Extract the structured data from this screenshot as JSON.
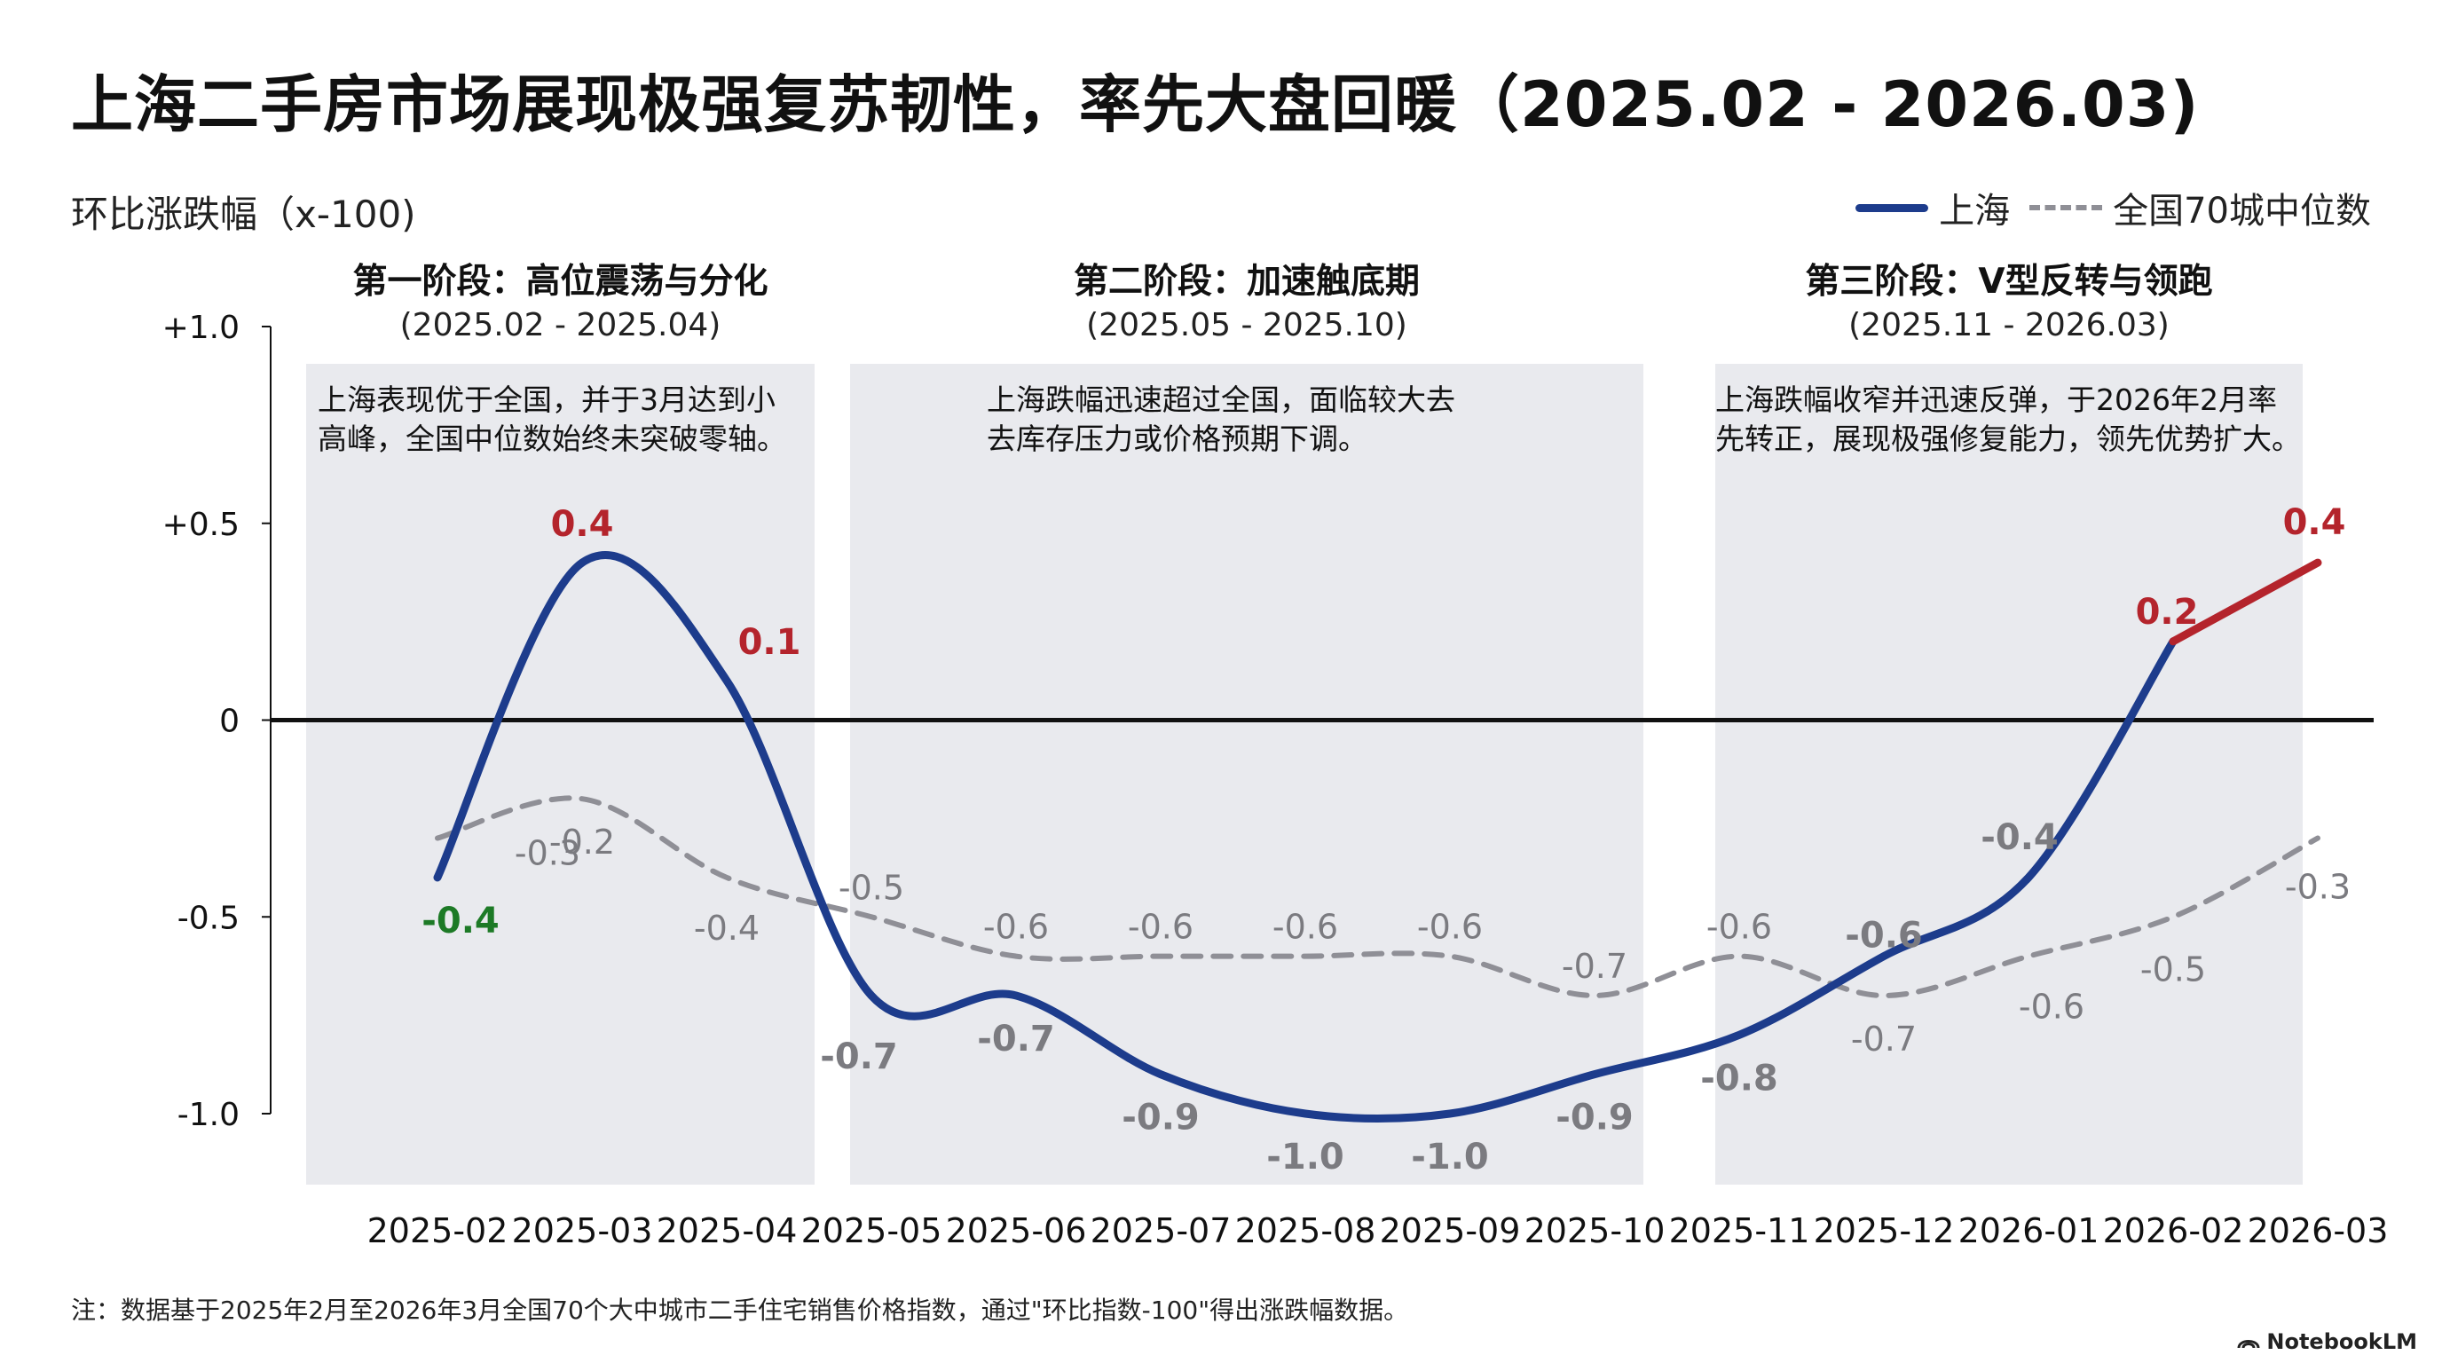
{
  "title": "上海二手房市场展现极强复苏韧性，率先大盘回暖（2025.02 - 2026.03)",
  "y_axis_label": "环比涨跌幅（x-100)",
  "legend": {
    "shanghai": "上海",
    "national": "全国70城中位数"
  },
  "footnote": "注：数据基于2025年2月至2026年3月全国70个大中城市二手住宅销售价格指数，通过\"环比指数-100\"得出涨跌幅数据。",
  "brand": "NotebookLM",
  "colors": {
    "shanghai": "#1d3c8c",
    "shanghai_recent": "#b4242c",
    "national": "#8f8f96",
    "panel": "#e9eaee",
    "label_red": "#b4242c",
    "label_green": "#1d7a26",
    "label_gray": "#7b7b80"
  },
  "stages": [
    {
      "title": "第一阶段：高位震荡与分化",
      "range": "(2025.02 - 2025.04)",
      "desc": [
        "上海表现优于全国，并于3月达到小",
        "高峰，全国中位数始终未突破零轴。"
      ],
      "start": 0,
      "end": 2
    },
    {
      "title": "第二阶段：加速触底期",
      "range": "(2025.05 - 2025.10)",
      "desc": [
        "上海跌幅迅速超过全国，面临较大去",
        "去库存压力或价格预期下调。"
      ],
      "start": 3,
      "end": 8
    },
    {
      "title": "第三阶段：V型反转与领跑",
      "range": "(2025.11 - 2026.03)",
      "desc": [
        "上海跌幅收窄并迅速反弹，于2026年2月率",
        "先转正，展现极强修复能力，领先优势扩大。"
      ],
      "start": 9,
      "end": 13
    }
  ],
  "chart_data": {
    "type": "line",
    "title": "上海二手房市场展现极强复苏韧性，率先大盘回暖（2025.02 - 2026.03)",
    "ylabel": "环比涨跌幅（x-100)",
    "xlabel": "",
    "ylim": [
      -1.0,
      1.0
    ],
    "yticks": [
      1.0,
      0.5,
      0,
      -0.5,
      -1.0
    ],
    "ytick_labels": [
      "+1.0",
      "+0.5",
      "0",
      "-0.5",
      "-1.0"
    ],
    "categories": [
      "2025-02",
      "2025-03",
      "2025-04",
      "2025-05",
      "2025-06",
      "2025-07",
      "2025-08",
      "2025-09",
      "2025-10",
      "2025-11",
      "2025-12",
      "2026-01",
      "2026-02",
      "2026-03"
    ],
    "series": [
      {
        "name": "上海",
        "values": [
          -0.4,
          0.4,
          0.1,
          -0.7,
          -0.7,
          -0.9,
          -1.0,
          -1.0,
          -0.9,
          -0.8,
          -0.6,
          -0.4,
          0.2,
          0.4
        ],
        "labels": [
          "-0.4",
          "0.4",
          "0.1",
          "-0.7",
          "-0.7",
          "-0.9",
          "-1.0",
          "-1.0",
          "-0.9",
          "-0.8",
          "-0.6",
          "-0.4",
          "0.2",
          "0.4"
        ],
        "label_colors": [
          "green",
          "red",
          "red",
          "gray",
          "gray",
          "gray",
          "gray",
          "gray",
          "gray",
          "gray",
          "gray",
          "gray",
          "red",
          "red"
        ]
      },
      {
        "name": "全国70城中位数",
        "values": [
          -0.3,
          -0.2,
          -0.4,
          -0.5,
          -0.6,
          -0.6,
          -0.6,
          -0.6,
          -0.7,
          -0.6,
          -0.7,
          -0.6,
          -0.5,
          -0.3
        ],
        "labels": [
          "-0.3",
          "-0.2",
          "-0.4",
          "-0.5",
          "-0.6",
          "-0.6",
          "-0.6",
          "-0.6",
          "-0.7",
          "-0.6",
          "-0.7",
          "-0.6",
          "-0.5",
          "-0.3"
        ]
      }
    ]
  }
}
